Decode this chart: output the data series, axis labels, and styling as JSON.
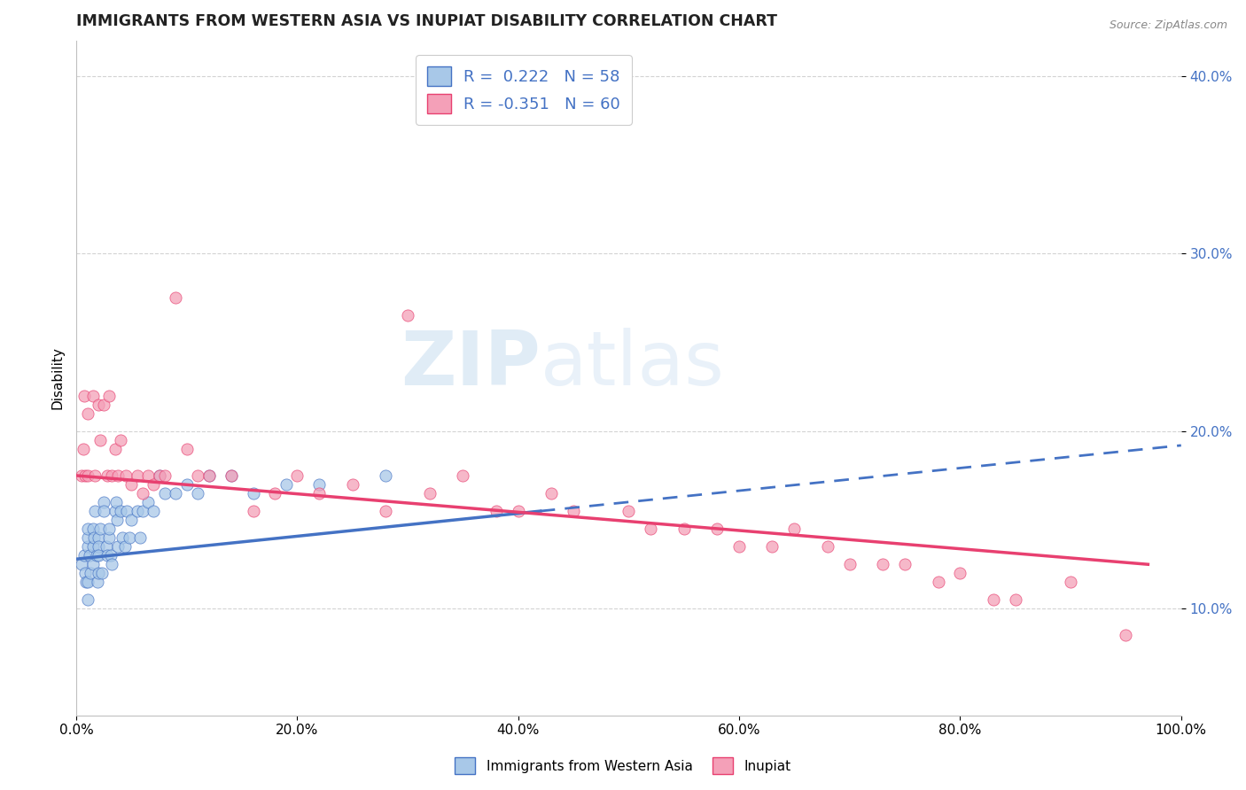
{
  "title": "IMMIGRANTS FROM WESTERN ASIA VS INUPIAT DISABILITY CORRELATION CHART",
  "source": "Source: ZipAtlas.com",
  "ylabel": "Disability",
  "xlim": [
    0,
    1.0
  ],
  "ylim": [
    0.04,
    0.42
  ],
  "yticks": [
    0.1,
    0.2,
    0.3,
    0.4
  ],
  "ytick_labels": [
    "10.0%",
    "20.0%",
    "30.0%",
    "40.0%"
  ],
  "xticks": [
    0.0,
    0.2,
    0.4,
    0.6,
    0.8,
    1.0
  ],
  "xtick_labels": [
    "0.0%",
    "20.0%",
    "40.0%",
    "60.0%",
    "80.0%",
    "100.0%"
  ],
  "legend_R1": "0.222",
  "legend_N1": "58",
  "legend_R2": "-0.351",
  "legend_N2": "60",
  "color_blue": "#a8c8e8",
  "color_pink": "#f4a0b8",
  "line_blue": "#4472c4",
  "line_pink": "#e84070",
  "background_color": "#ffffff",
  "watermark_zip": "ZIP",
  "watermark_atlas": "atlas",
  "blue_scatter_x": [
    0.005,
    0.007,
    0.008,
    0.009,
    0.01,
    0.01,
    0.01,
    0.01,
    0.01,
    0.012,
    0.013,
    0.015,
    0.015,
    0.015,
    0.016,
    0.017,
    0.018,
    0.019,
    0.02,
    0.02,
    0.02,
    0.02,
    0.022,
    0.023,
    0.025,
    0.025,
    0.027,
    0.028,
    0.03,
    0.03,
    0.031,
    0.032,
    0.035,
    0.036,
    0.037,
    0.038,
    0.04,
    0.042,
    0.044,
    0.046,
    0.048,
    0.05,
    0.055,
    0.058,
    0.06,
    0.065,
    0.07,
    0.075,
    0.08,
    0.09,
    0.1,
    0.11,
    0.12,
    0.14,
    0.16,
    0.19,
    0.22,
    0.28
  ],
  "blue_scatter_y": [
    0.125,
    0.13,
    0.12,
    0.115,
    0.135,
    0.14,
    0.145,
    0.115,
    0.105,
    0.13,
    0.12,
    0.145,
    0.135,
    0.125,
    0.14,
    0.155,
    0.13,
    0.115,
    0.12,
    0.14,
    0.135,
    0.13,
    0.145,
    0.12,
    0.16,
    0.155,
    0.135,
    0.13,
    0.14,
    0.145,
    0.13,
    0.125,
    0.155,
    0.16,
    0.15,
    0.135,
    0.155,
    0.14,
    0.135,
    0.155,
    0.14,
    0.15,
    0.155,
    0.14,
    0.155,
    0.16,
    0.155,
    0.175,
    0.165,
    0.165,
    0.17,
    0.165,
    0.175,
    0.175,
    0.165,
    0.17,
    0.17,
    0.175
  ],
  "pink_scatter_x": [
    0.005,
    0.006,
    0.007,
    0.008,
    0.01,
    0.01,
    0.015,
    0.017,
    0.02,
    0.022,
    0.025,
    0.028,
    0.03,
    0.032,
    0.035,
    0.038,
    0.04,
    0.045,
    0.05,
    0.055,
    0.06,
    0.065,
    0.07,
    0.075,
    0.08,
    0.09,
    0.1,
    0.11,
    0.12,
    0.14,
    0.16,
    0.18,
    0.2,
    0.22,
    0.25,
    0.28,
    0.3,
    0.32,
    0.35,
    0.38,
    0.4,
    0.43,
    0.45,
    0.5,
    0.52,
    0.55,
    0.58,
    0.6,
    0.63,
    0.65,
    0.68,
    0.7,
    0.73,
    0.75,
    0.78,
    0.8,
    0.83,
    0.85,
    0.9,
    0.95
  ],
  "pink_scatter_y": [
    0.175,
    0.19,
    0.22,
    0.175,
    0.175,
    0.21,
    0.22,
    0.175,
    0.215,
    0.195,
    0.215,
    0.175,
    0.22,
    0.175,
    0.19,
    0.175,
    0.195,
    0.175,
    0.17,
    0.175,
    0.165,
    0.175,
    0.17,
    0.175,
    0.175,
    0.275,
    0.19,
    0.175,
    0.175,
    0.175,
    0.155,
    0.165,
    0.175,
    0.165,
    0.17,
    0.155,
    0.265,
    0.165,
    0.175,
    0.155,
    0.155,
    0.165,
    0.155,
    0.155,
    0.145,
    0.145,
    0.145,
    0.135,
    0.135,
    0.145,
    0.135,
    0.125,
    0.125,
    0.125,
    0.115,
    0.12,
    0.105,
    0.105,
    0.115,
    0.085
  ],
  "blue_line_x0": 0.0,
  "blue_line_x_solid_end": 0.42,
  "blue_line_x_dash_end": 1.0,
  "blue_line_y0": 0.128,
  "blue_line_y_solid_end": 0.155,
  "blue_line_y_dash_end": 0.192,
  "pink_line_x0": 0.0,
  "pink_line_x_end": 0.97,
  "pink_line_y0": 0.175,
  "pink_line_y_end": 0.125
}
